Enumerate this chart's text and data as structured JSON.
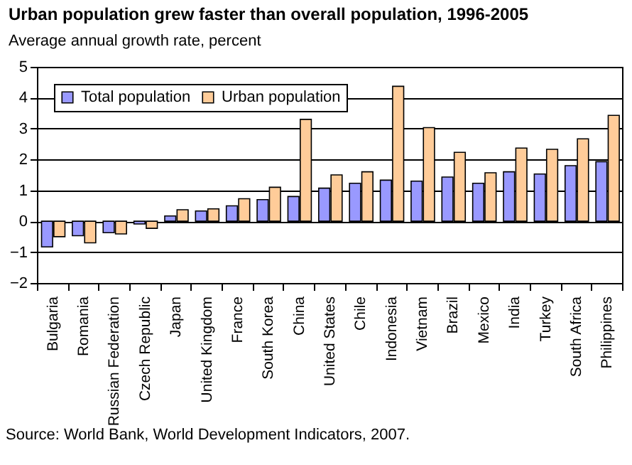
{
  "chart_data": {
    "type": "bar",
    "title": "Urban population grew faster than overall population, 1996-2005",
    "subtitle": "Average annual growth rate, percent",
    "categories": [
      "Bulgaria",
      "Romania",
      "Russian Federation",
      "Czech Republic",
      "Japan",
      "United Kingdom",
      "France",
      "South Korea",
      "China",
      "United States",
      "Chile",
      "Indonesia",
      "Vietnam",
      "Brazil",
      "Mexico",
      "India",
      "Turkey",
      "South Africa",
      "Philippines"
    ],
    "series": [
      {
        "name": "Total population",
        "color": "#9999ff",
        "values": [
          -0.83,
          -0.47,
          -0.37,
          -0.09,
          0.17,
          0.33,
          0.5,
          0.7,
          0.8,
          1.07,
          1.23,
          1.33,
          1.3,
          1.43,
          1.23,
          1.6,
          1.53,
          1.8,
          1.93
        ]
      },
      {
        "name": "Urban population",
        "color": "#ffcc99",
        "values": [
          -0.5,
          -0.7,
          -0.41,
          -0.23,
          0.37,
          0.4,
          0.73,
          1.1,
          3.3,
          1.5,
          1.6,
          4.37,
          3.03,
          2.23,
          1.57,
          2.37,
          2.33,
          2.67,
          3.43
        ]
      }
    ],
    "ylim": [
      -2,
      5
    ],
    "yticks": [
      -2,
      -1,
      0,
      1,
      2,
      3,
      4,
      5
    ],
    "grid": "y",
    "legend": "top left",
    "annotations": [
      "Source: World Bank, World Development Indicators, 2007."
    ]
  }
}
